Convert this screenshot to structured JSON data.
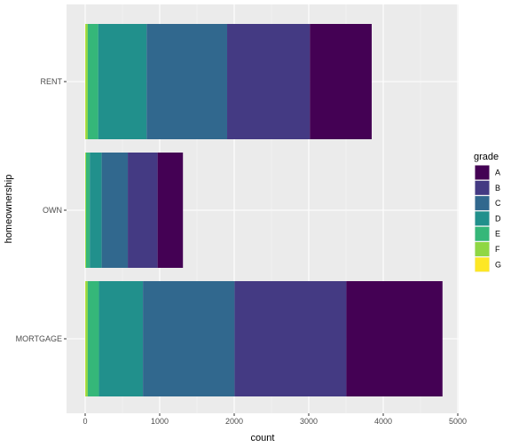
{
  "chart_data": {
    "type": "bar",
    "orientation": "horizontal",
    "stacked": true,
    "categories": [
      "RENT",
      "OWN",
      "MORTGAGE"
    ],
    "xlabel": "count",
    "ylabel": "homeownership",
    "xlim": [
      0,
      5000
    ],
    "x_ticks": [
      0,
      1000,
      2000,
      3000,
      4000,
      5000
    ],
    "grid": true,
    "legend_title": "grade",
    "legend_position": "right",
    "stack_order": [
      "G",
      "F",
      "E",
      "D",
      "C",
      "B",
      "A"
    ],
    "series": [
      {
        "name": "A",
        "color": "#440154",
        "values": [
          830,
          340,
          1290
        ]
      },
      {
        "name": "B",
        "color": "#443A83",
        "values": [
          1110,
          400,
          1500
        ]
      },
      {
        "name": "C",
        "color": "#31688E",
        "values": [
          1080,
          350,
          1230
        ]
      },
      {
        "name": "D",
        "color": "#21908C",
        "values": [
          650,
          160,
          590
        ]
      },
      {
        "name": "E",
        "color": "#35B779",
        "values": [
          140,
          50,
          150
        ]
      },
      {
        "name": "F",
        "color": "#8FD744",
        "values": [
          30,
          10,
          30
        ]
      },
      {
        "name": "G",
        "color": "#FDE725",
        "values": [
          5,
          2,
          5
        ]
      }
    ]
  }
}
